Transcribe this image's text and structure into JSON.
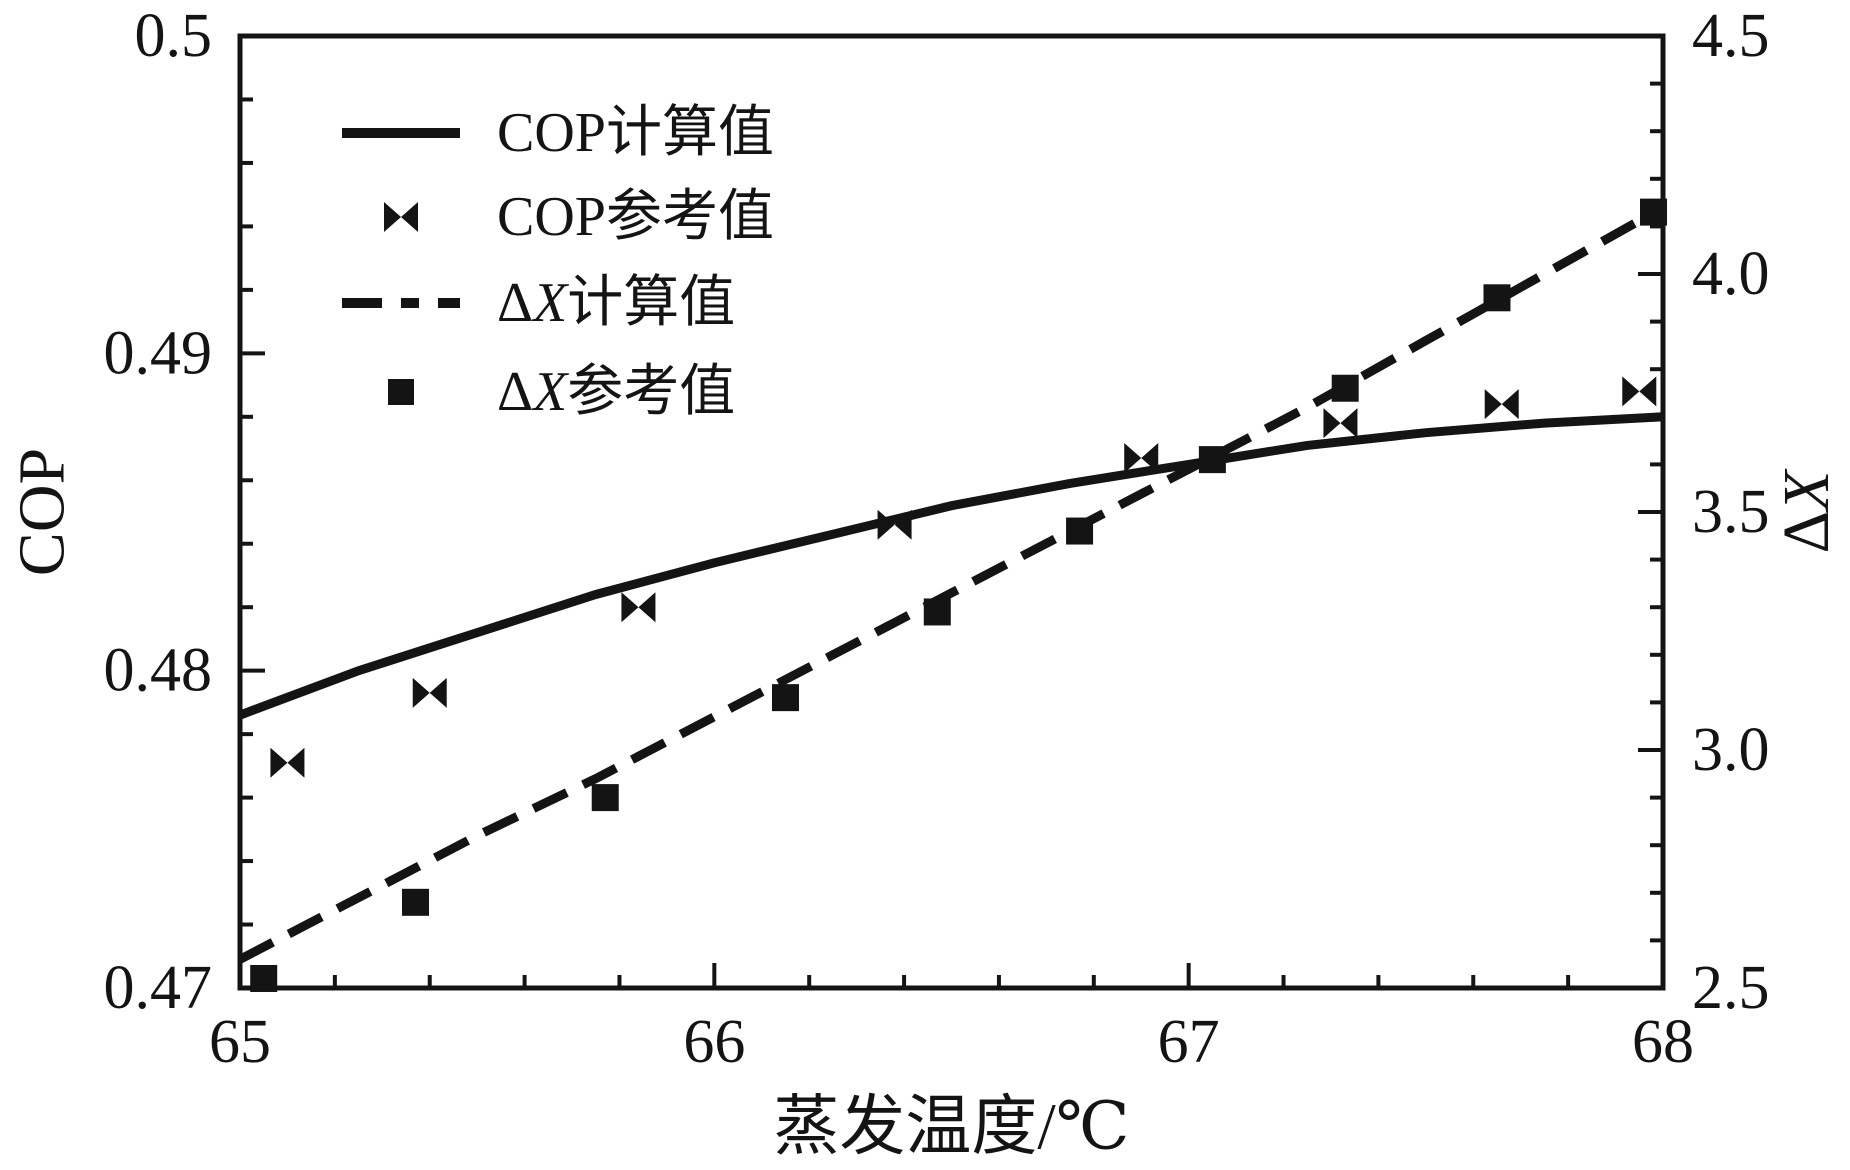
{
  "figure": {
    "background": "#ffffff",
    "ink_color": "#141414"
  },
  "chart_data": {
    "type": "line",
    "title": "",
    "xlabel": "蒸发温度/℃",
    "ylabel_left": "COP",
    "ylabel_right": "ΔX",
    "grid": false,
    "legend_position": "top-left-inside",
    "x_axis": {
      "min": 65,
      "max": 68,
      "major_step": 1,
      "minor_step": 0.2,
      "major_labels": [
        "65",
        "66",
        "67",
        "68"
      ]
    },
    "y_axis_left": {
      "min": 0.47,
      "max": 0.5,
      "major_step": 0.01,
      "minor_step": 0.002,
      "major_labels": [
        "0.47",
        "0.48",
        "0.49",
        "0.5"
      ]
    },
    "y_axis_right": {
      "min": 2.5,
      "max": 4.5,
      "major_step": 0.5,
      "minor_step": 0.1,
      "major_labels": [
        "2.5",
        "3.0",
        "3.5",
        "4.0",
        "4.5"
      ]
    },
    "series": [
      {
        "key": "cop-calculated",
        "name": "COP计算值",
        "axis": "left",
        "kind": "line",
        "line_style": "solid",
        "x": [
          65,
          65.25,
          65.5,
          65.75,
          66,
          66.25,
          66.5,
          66.75,
          67,
          67.25,
          67.5,
          67.75,
          68
        ],
        "y": [
          0.4786,
          0.48,
          0.4812,
          0.4824,
          0.4834,
          0.4843,
          0.4852,
          0.4859,
          0.4865,
          0.4871,
          0.4875,
          0.4878,
          0.488
        ]
      },
      {
        "key": "cop-reference",
        "name": "COP参考值",
        "axis": "left",
        "kind": "scatter",
        "marker": "bowtie",
        "x": [
          65.1,
          65.4,
          65.84,
          66.38,
          66.9,
          67.32,
          67.66,
          67.95
        ],
        "y": [
          0.4771,
          0.4793,
          0.482,
          0.4846,
          0.4867,
          0.4878,
          0.4884,
          0.4888
        ]
      },
      {
        "key": "dx-calculated",
        "name": "ΔX计算值",
        "axis": "right",
        "kind": "line",
        "line_style": "dashed",
        "x": [
          65,
          65.25,
          65.5,
          65.75,
          66,
          66.25,
          66.5,
          66.75,
          67,
          67.25,
          67.5,
          67.75,
          68
        ],
        "y": [
          2.56,
          2.69,
          2.82,
          2.94,
          3.07,
          3.2,
          3.33,
          3.46,
          3.59,
          3.72,
          3.86,
          4.0,
          4.14
        ]
      },
      {
        "key": "dx-reference",
        "name": "ΔX参考值",
        "axis": "right",
        "kind": "scatter",
        "marker": "square",
        "x": [
          65.05,
          65.37,
          65.77,
          66.15,
          66.47,
          66.77,
          67.05,
          67.33,
          67.65,
          67.98
        ],
        "y": [
          2.52,
          2.68,
          2.9,
          3.11,
          3.29,
          3.46,
          3.61,
          3.76,
          3.95,
          4.13
        ]
      }
    ]
  }
}
